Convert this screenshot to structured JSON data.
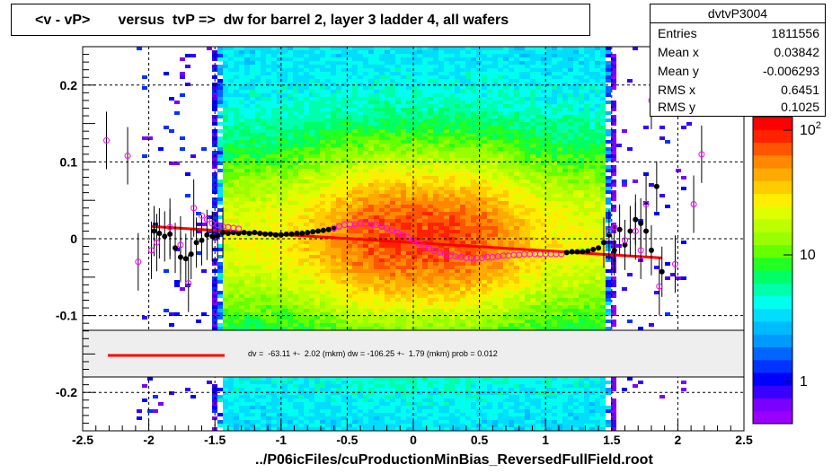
{
  "title": "<v - vP>       versus  tvP =>  dw for barrel 2, layer 3 ladder 4, all wafers",
  "footer": "../P06icFiles/cuProductionMinBias_ReversedFullField.root",
  "stats": {
    "name": "dvtvP3004",
    "rows": [
      {
        "label": "Entries",
        "value": "1811556"
      },
      {
        "label": "Mean x",
        "value": "0.03842"
      },
      {
        "label": "Mean y",
        "value": "-0.006293"
      },
      {
        "label": "RMS x",
        "value": "0.6451"
      },
      {
        "label": "RMS y",
        "value": "0.1025"
      }
    ]
  },
  "fit_text": "dv =  -63.11 +-  2.02 (mkm) dw = -106.25 +-  1.79 (mkm) prob = 0.012",
  "colors": {
    "fit_line": "#ff0000",
    "profile_black": "#000000",
    "profile_magenta": "#ff00ff"
  },
  "chart_data": {
    "type": "heatmap",
    "title": "<v - vP>       versus  tvP =>  dw for barrel 2, layer 3 ladder 4, all wafers",
    "xlabel": "",
    "ylabel": "",
    "xlim": [
      -2.5,
      2.5
    ],
    "ylim": [
      -0.25,
      0.25
    ],
    "x_ticks": [
      "-2.5",
      "-2",
      "-1.5",
      "-1",
      "-0.5",
      "0",
      "0.5",
      "1",
      "1.5",
      "2",
      "2.5"
    ],
    "y_ticks": [
      "-0.2",
      "-0.1",
      "0",
      "0.1",
      "0.2"
    ],
    "z_ticks": [
      "1",
      "10",
      "10^2"
    ],
    "grid": true,
    "z_scale": "log",
    "fit_line": {
      "x": [
        -1.98,
        1.88
      ],
      "y": [
        0.016,
        -0.025
      ]
    },
    "profile_black": [
      {
        "x": -1.96,
        "y": 0.01
      },
      {
        "x": -1.92,
        "y": 0.007
      },
      {
        "x": -1.88,
        "y": 0.003
      },
      {
        "x": -1.84,
        "y": 0.006
      },
      {
        "x": -1.8,
        "y": -0.012
      },
      {
        "x": -1.76,
        "y": -0.024
      },
      {
        "x": -1.72,
        "y": -0.026
      },
      {
        "x": -1.68,
        "y": -0.02
      },
      {
        "x": -1.64,
        "y": -0.005
      },
      {
        "x": -1.6,
        "y": -0.002
      },
      {
        "x": -1.56,
        "y": 0.005
      },
      {
        "x": -1.52,
        "y": 0.003
      },
      {
        "x": -1.48,
        "y": 0.004
      },
      {
        "x": -1.44,
        "y": 0.008
      },
      {
        "x": -1.4,
        "y": 0.007
      },
      {
        "x": -1.36,
        "y": 0.008
      },
      {
        "x": -1.32,
        "y": 0.007
      },
      {
        "x": -1.28,
        "y": 0.008
      },
      {
        "x": -1.24,
        "y": 0.007
      },
      {
        "x": -1.2,
        "y": 0.008
      },
      {
        "x": -1.16,
        "y": 0.007
      },
      {
        "x": -1.12,
        "y": 0.006
      },
      {
        "x": -1.08,
        "y": 0.006
      },
      {
        "x": -1.04,
        "y": 0.005
      },
      {
        "x": -1.0,
        "y": 0.005
      },
      {
        "x": -0.96,
        "y": 0.006
      },
      {
        "x": -0.92,
        "y": 0.006
      },
      {
        "x": -0.88,
        "y": 0.007
      },
      {
        "x": -0.84,
        "y": 0.007
      },
      {
        "x": -0.8,
        "y": 0.008
      },
      {
        "x": -0.76,
        "y": 0.009
      },
      {
        "x": -0.72,
        "y": 0.01
      },
      {
        "x": -0.68,
        "y": 0.011
      },
      {
        "x": -0.64,
        "y": 0.012
      },
      {
        "x": -0.6,
        "y": 0.013
      },
      {
        "x": 1.16,
        "y": -0.018
      },
      {
        "x": 1.2,
        "y": -0.017
      },
      {
        "x": 1.24,
        "y": -0.017
      },
      {
        "x": 1.28,
        "y": -0.017
      },
      {
        "x": 1.32,
        "y": -0.016
      },
      {
        "x": 1.36,
        "y": -0.014
      },
      {
        "x": 1.4,
        "y": -0.012
      },
      {
        "x": 1.44,
        "y": -0.005
      },
      {
        "x": 1.48,
        "y": 0.005
      },
      {
        "x": 1.52,
        "y": -0.015
      },
      {
        "x": 1.56,
        "y": 0.012
      },
      {
        "x": 1.6,
        "y": -0.008
      },
      {
        "x": 1.64,
        "y": 0.01
      },
      {
        "x": 1.68,
        "y": 0.025
      },
      {
        "x": 1.72,
        "y": 0.02
      },
      {
        "x": 1.76,
        "y": 0.01
      },
      {
        "x": 1.8,
        "y": -0.015
      },
      {
        "x": 1.84,
        "y": 0.068
      },
      {
        "x": 1.88,
        "y": -0.043
      }
    ],
    "profile_magenta": [
      {
        "x": -2.32,
        "y": 0.128
      },
      {
        "x": -2.16,
        "y": 0.108
      },
      {
        "x": -2.08,
        "y": -0.03
      },
      {
        "x": -1.98,
        "y": -0.015
      },
      {
        "x": -1.94,
        "y": -0.005
      },
      {
        "x": -1.84,
        "y": 0.015
      },
      {
        "x": -1.76,
        "y": -0.008
      },
      {
        "x": -1.7,
        "y": -0.058
      },
      {
        "x": -1.66,
        "y": 0.04
      },
      {
        "x": -1.6,
        "y": 0.03
      },
      {
        "x": -1.56,
        "y": 0.025
      },
      {
        "x": -1.52,
        "y": 0.02
      },
      {
        "x": -1.48,
        "y": 0.018
      },
      {
        "x": -1.44,
        "y": 0.016
      },
      {
        "x": -1.4,
        "y": 0.015
      },
      {
        "x": -1.36,
        "y": 0.014
      },
      {
        "x": -1.32,
        "y": 0.013
      },
      {
        "x": -0.6,
        "y": 0.014
      },
      {
        "x": -0.56,
        "y": 0.016
      },
      {
        "x": -0.52,
        "y": 0.018
      },
      {
        "x": -0.48,
        "y": 0.019
      },
      {
        "x": -0.44,
        "y": 0.019
      },
      {
        "x": -0.4,
        "y": 0.02
      },
      {
        "x": -0.36,
        "y": 0.02
      },
      {
        "x": -0.32,
        "y": 0.019
      },
      {
        "x": -0.28,
        "y": 0.018
      },
      {
        "x": -0.24,
        "y": 0.016
      },
      {
        "x": -0.2,
        "y": 0.014
      },
      {
        "x": -0.16,
        "y": 0.011
      },
      {
        "x": -0.12,
        "y": 0.008
      },
      {
        "x": -0.08,
        "y": 0.005
      },
      {
        "x": -0.04,
        "y": 0.002
      },
      {
        "x": 0.0,
        "y": -0.002
      },
      {
        "x": 0.04,
        "y": -0.006
      },
      {
        "x": 0.08,
        "y": -0.01
      },
      {
        "x": 0.12,
        "y": -0.013
      },
      {
        "x": 0.16,
        "y": -0.016
      },
      {
        "x": 0.2,
        "y": -0.018
      },
      {
        "x": 0.24,
        "y": -0.02
      },
      {
        "x": 0.28,
        "y": -0.022
      },
      {
        "x": 0.32,
        "y": -0.023
      },
      {
        "x": 0.36,
        "y": -0.024
      },
      {
        "x": 0.4,
        "y": -0.025
      },
      {
        "x": 0.44,
        "y": -0.025
      },
      {
        "x": 0.48,
        "y": -0.025
      },
      {
        "x": 0.52,
        "y": -0.025
      },
      {
        "x": 0.56,
        "y": -0.024
      },
      {
        "x": 0.6,
        "y": -0.024
      },
      {
        "x": 0.64,
        "y": -0.023
      },
      {
        "x": 0.68,
        "y": -0.022
      },
      {
        "x": 0.72,
        "y": -0.022
      },
      {
        "x": 0.76,
        "y": -0.021
      },
      {
        "x": 0.8,
        "y": -0.021
      },
      {
        "x": 0.84,
        "y": -0.02
      },
      {
        "x": 0.88,
        "y": -0.02
      },
      {
        "x": 0.92,
        "y": -0.02
      },
      {
        "x": 0.96,
        "y": -0.02
      },
      {
        "x": 1.0,
        "y": -0.02
      },
      {
        "x": 1.04,
        "y": -0.02
      },
      {
        "x": 1.08,
        "y": -0.02
      },
      {
        "x": 1.12,
        "y": -0.02
      },
      {
        "x": 1.48,
        "y": 0.01
      },
      {
        "x": 1.52,
        "y": 0.015
      },
      {
        "x": 1.6,
        "y": -0.002
      },
      {
        "x": 1.68,
        "y": 0.01
      },
      {
        "x": 1.72,
        "y": -0.015
      },
      {
        "x": 1.76,
        "y": 0.045
      },
      {
        "x": 1.8,
        "y": 0.18
      },
      {
        "x": 1.86,
        "y": -0.062
      },
      {
        "x": 1.98,
        "y": -0.033
      },
      {
        "x": 2.12,
        "y": 0.045
      },
      {
        "x": 2.18,
        "y": 0.11
      }
    ]
  }
}
